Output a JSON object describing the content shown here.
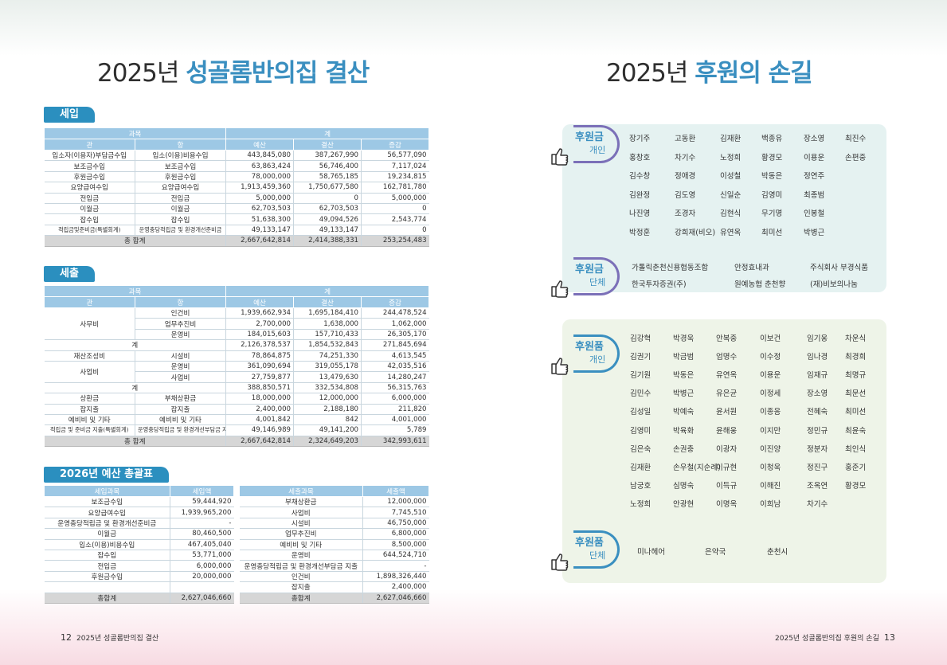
{
  "left": {
    "title_plain": "2025년 ",
    "title_highlight": "성골롬반의집 결산",
    "income": {
      "tag": "세입",
      "h1": [
        "과목",
        "계"
      ],
      "h2": [
        "관",
        "항",
        "예산",
        "결산",
        "증감"
      ],
      "rows": [
        [
          "입소자(이용자)부담금수입",
          "입소(이용)비용수입",
          "443,845,080",
          "387,267,990",
          "56,577,090"
        ],
        [
          "보조금수입",
          "보조금수입",
          "63,863,424",
          "56,746,400",
          "7,117,024"
        ],
        [
          "후원금수입",
          "후원금수입",
          "78,000,000",
          "58,765,185",
          "19,234,815"
        ],
        [
          "요양급여수입",
          "요양급여수입",
          "1,913,459,360",
          "1,750,677,580",
          "162,781,780"
        ],
        [
          "전입금",
          "전입금",
          "5,000,000",
          "0",
          "5,000,000"
        ],
        [
          "이월금",
          "이월금",
          "62,703,503",
          "62,703,503",
          "0"
        ],
        [
          "잡수입",
          "잡수입",
          "51,638,300",
          "49,094,526",
          "2,543,774"
        ],
        [
          "적립금및준비금(특별회계)",
          "운영충당적립금 및 환경개선준비금",
          "49,133,147",
          "49,133,147",
          "0"
        ]
      ],
      "total": [
        "총 합계",
        "2,667,642,814",
        "2,414,388,331",
        "253,254,483"
      ]
    },
    "expense": {
      "tag": "세출",
      "h1": [
        "과목",
        "계"
      ],
      "h2": [
        "관",
        "항",
        "예산",
        "결산",
        "증감"
      ],
      "rows": [
        {
          "gwan": "사무비",
          "hang": "인건비",
          "v": [
            "1,939,662,934",
            "1,695,184,410",
            "244,478,524"
          ]
        },
        {
          "gwan": "",
          "hang": "업무추진비",
          "v": [
            "2,700,000",
            "1,638,000",
            "1,062,000"
          ]
        },
        {
          "gwan": "",
          "hang": "운영비",
          "v": [
            "184,015,603",
            "157,710,433",
            "26,305,170"
          ]
        },
        {
          "gwan": "계",
          "hang": "",
          "v": [
            "2,126,378,537",
            "1,854,532,843",
            "271,845,694"
          ]
        },
        {
          "gwan": "재산조성비",
          "hang": "시설비",
          "v": [
            "78,864,875",
            "74,251,330",
            "4,613,545"
          ]
        },
        {
          "gwan": "사업비",
          "hang": "운영비",
          "v": [
            "361,090,694",
            "319,055,178",
            "42,035,516"
          ]
        },
        {
          "gwan": "",
          "hang": "사업비",
          "v": [
            "27,759,877",
            "13,479,630",
            "14,280,247"
          ]
        },
        {
          "gwan": "계",
          "hang": "",
          "v": [
            "388,850,571",
            "332,534,808",
            "56,315,763"
          ]
        },
        {
          "gwan": "상환금",
          "hang": "부채상환금",
          "v": [
            "18,000,000",
            "12,000,000",
            "6,000,000"
          ]
        },
        {
          "gwan": "잡지출",
          "hang": "잡지출",
          "v": [
            "2,400,000",
            "2,188,180",
            "211,820"
          ]
        },
        {
          "gwan": "예비비 및 기타",
          "hang": "예비비 및 기타",
          "v": [
            "4,001,842",
            "842",
            "4,001,000"
          ]
        },
        {
          "gwan": "적립금 및 준비금 지출(특별회계)",
          "hang": "운영충당적립금 및 환경개선부담금 지출",
          "v": [
            "49,146,989",
            "49,141,200",
            "5,789"
          ]
        }
      ],
      "total": [
        "총 합계",
        "2,667,642,814",
        "2,324,649,203",
        "342,993,611"
      ]
    },
    "budget": {
      "tag": "2026년 예산 총괄표",
      "headers": [
        "세입과목",
        "세입액",
        "세출과목",
        "세출액"
      ],
      "rows": [
        [
          "보조금수입",
          "59,444,920",
          "부채상환금",
          "12,000,000"
        ],
        [
          "요양급여수입",
          "1,939,965,200",
          "사업비",
          "7,745,510"
        ],
        [
          "운영충당적립금 및 환경개선준비금",
          "-",
          "시설비",
          "46,750,000"
        ],
        [
          "이월금",
          "80,460,500",
          "업무추진비",
          "6,800,000"
        ],
        [
          "입소(이용)비용수입",
          "467,405,040",
          "예비비 및 기타",
          "8,500,000"
        ],
        [
          "잡수입",
          "53,771,000",
          "운영비",
          "644,524,710"
        ],
        [
          "전입금",
          "6,000,000",
          "운영충당적립금 및 환경개선부담금 지출",
          "-"
        ],
        [
          "후원금수입",
          "20,000,000",
          "인건비",
          "1,898,326,440"
        ],
        [
          "",
          "",
          "잡지출",
          "2,400,000"
        ]
      ],
      "total": [
        "총합계",
        "2,627,046,660",
        "총합계",
        "2,627,046,660"
      ]
    },
    "footer": {
      "page": "12",
      "text": "2025년 성골롬반의집 결산"
    }
  },
  "right": {
    "title_plain": "2025년 ",
    "title_highlight": "후원의 손길",
    "groups": [
      {
        "t1": "후원금",
        "t2": "개인",
        "names": [
          [
            "장기주",
            "고동환",
            "김재환",
            "백종유",
            "장소영",
            "최진수"
          ],
          [
            "홍창호",
            "차기수",
            "노정희",
            "황경모",
            "이용운",
            "손편중"
          ],
          [
            "김수창",
            "정애경",
            "이성철",
            "박동은",
            "정연주",
            ""
          ],
          [
            "김완정",
            "김도영",
            "신일순",
            "김영미",
            "최종범",
            ""
          ],
          [
            "나진영",
            "조경자",
            "김현식",
            "무기명",
            "인봉철",
            ""
          ],
          [
            "박정훈",
            "강희재(비오)",
            "유연옥",
            "최미선",
            "박병근",
            ""
          ]
        ]
      },
      {
        "t1": "후원금",
        "t2": "단체",
        "names": [
          [
            "가톨릭춘천신용협동조합",
            "안정효내과",
            "주식회사 부경식품"
          ],
          [
            "한국투자증권(주)",
            "원예농협 춘천향",
            "(재)비보의나눔"
          ]
        ]
      },
      {
        "t1": "후원품",
        "t2": "개인",
        "names": [
          [
            "김강혁",
            "박경욱",
            "안복중",
            "이보건",
            "임기웅",
            "차운식"
          ],
          [
            "김권기",
            "박금범",
            "엄명수",
            "이수정",
            "임나경",
            "최경희"
          ],
          [
            "김기원",
            "박동은",
            "유연옥",
            "이용운",
            "임재규",
            "최명규"
          ],
          [
            "김민수",
            "박병근",
            "유은균",
            "이정세",
            "장소영",
            "최문선"
          ],
          [
            "김성일",
            "박예숙",
            "윤서원",
            "이종응",
            "전혜숙",
            "최미선"
          ],
          [
            "김영미",
            "박육화",
            "윤해웅",
            "이지만",
            "정민규",
            "최윤숙"
          ],
          [
            "김은숙",
            "손권충",
            "이광자",
            "이진양",
            "정분자",
            "최인식"
          ],
          [
            "김재환",
            "손우철(지순례)",
            "이규현",
            "이청욱",
            "정진구",
            "홍준기"
          ],
          [
            "남궁호",
            "심명숙",
            "이득규",
            "이해진",
            "조옥연",
            "황경모"
          ],
          [
            "노정희",
            "안광현",
            "이명옥",
            "이희남",
            "차기수",
            ""
          ]
        ]
      },
      {
        "t1": "후원품",
        "t2": "단체",
        "names": [
          [
            "미나헤어",
            "은약국",
            "춘천시"
          ]
        ]
      }
    ],
    "footer": {
      "page": "13",
      "text": "2025년 성골롬반의집 후원의 손길"
    }
  }
}
